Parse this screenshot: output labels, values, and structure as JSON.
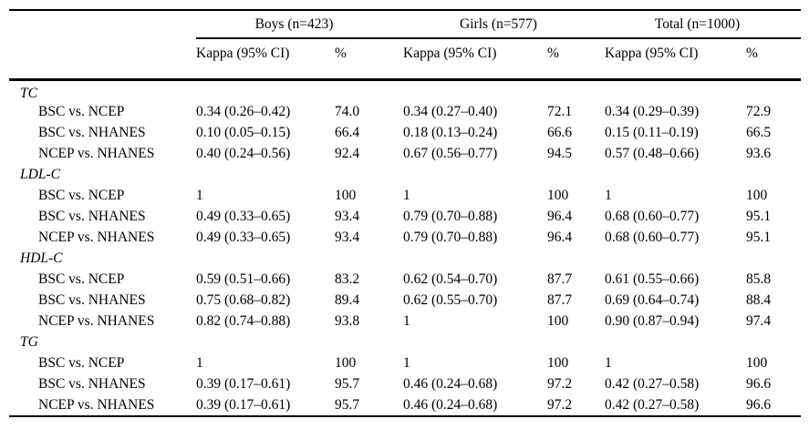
{
  "table": {
    "groups": [
      {
        "label": "Boys (n=423)"
      },
      {
        "label": "Girls (n=577)"
      },
      {
        "label": "Total (n=1000)"
      }
    ],
    "subheaders": {
      "kappa": "Kappa (95% CI)",
      "pct": "%"
    },
    "sections": [
      {
        "name": "TC",
        "rows": [
          {
            "label": "BSC vs. NCEP",
            "cells": [
              "0.34 (0.26–0.42)",
              "74.0",
              "0.34 (0.27–0.40)",
              "72.1",
              "0.34 (0.29–0.39)",
              "72.9"
            ]
          },
          {
            "label": "BSC vs. NHANES",
            "cells": [
              "0.10 (0.05–0.15)",
              "66.4",
              "0.18 (0.13–0.24)",
              "66.6",
              "0.15 (0.11–0.19)",
              "66.5"
            ]
          },
          {
            "label": "NCEP vs. NHANES",
            "cells": [
              "0.40 (0.24–0.56)",
              "92.4",
              "0.67 (0.56–0.77)",
              "94.5",
              "0.57 (0.48–0.66)",
              "93.6"
            ]
          }
        ]
      },
      {
        "name": "LDL-C",
        "rows": [
          {
            "label": "BSC vs. NCEP",
            "cells": [
              "1",
              "100",
              "1",
              "100",
              "1",
              "100"
            ]
          },
          {
            "label": "BSC vs. NHANES",
            "cells": [
              "0.49 (0.33–0.65)",
              "93.4",
              "0.79 (0.70–0.88)",
              "96.4",
              "0.68 (0.60–0.77)",
              "95.1"
            ]
          },
          {
            "label": "NCEP vs. NHANES",
            "cells": [
              "0.49 (0.33–0.65)",
              "93.4",
              "0.79 (0.70–0.88)",
              "96.4",
              "0.68 (0.60–0.77)",
              "95.1"
            ]
          }
        ]
      },
      {
        "name": "HDL-C",
        "rows": [
          {
            "label": "BSC vs. NCEP",
            "cells": [
              "0.59 (0.51–0.66)",
              "83.2",
              "0.62 (0.54–0.70)",
              "87.7",
              "0.61 (0.55–0.66)",
              "85.8"
            ]
          },
          {
            "label": "BSC vs. NHANES",
            "cells": [
              "0.75 (0.68–0.82)",
              "89.4",
              "0.62 (0.55–0.70)",
              "87.7",
              "0.69 (0.64–0.74)",
              "88.4"
            ]
          },
          {
            "label": "NCEP vs. NHANES",
            "cells": [
              "0.82 (0.74–0.88)",
              "93.8",
              "1",
              "100",
              "0.90 (0.87–0.94)",
              "97.4"
            ]
          }
        ]
      },
      {
        "name": "TG",
        "rows": [
          {
            "label": "BSC vs. NCEP",
            "cells": [
              "1",
              "100",
              "1",
              "100",
              "1",
              "100"
            ]
          },
          {
            "label": "BSC vs. NHANES",
            "cells": [
              "0.39 (0.17–0.61)",
              "95.7",
              "0.46 (0.24–0.68)",
              "97.2",
              "0.42 (0.27–0.58)",
              "96.6"
            ]
          },
          {
            "label": "NCEP vs. NHANES",
            "cells": [
              "0.39 (0.17–0.61)",
              "95.7",
              "0.46 (0.24–0.68)",
              "97.2",
              "0.42 (0.27–0.58)",
              "96.6"
            ]
          }
        ]
      }
    ]
  }
}
